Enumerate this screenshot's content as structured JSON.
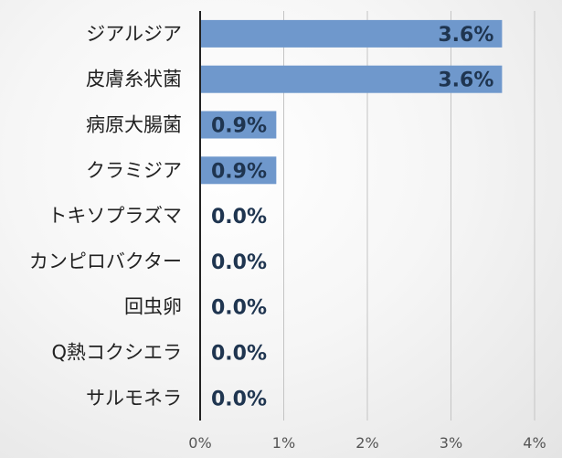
{
  "chart_data": {
    "type": "bar",
    "orientation": "horizontal",
    "categories": [
      "ジアルジア",
      "皮膚糸状菌",
      "病原大腸菌",
      "クラミジア",
      "トキソプラズマ",
      "カンピロバクター",
      "回虫卵",
      "Q熱コクシエラ",
      "サルモネラ"
    ],
    "values": [
      3.6,
      3.6,
      0.9,
      0.9,
      0.0,
      0.0,
      0.0,
      0.0,
      0.0
    ],
    "value_labels": [
      "3.6%",
      "3.6%",
      "0.9%",
      "0.9%",
      "0.0%",
      "0.0%",
      "0.0%",
      "0.0%",
      "0.0%"
    ],
    "x_ticks": [
      "0%",
      "1%",
      "2%",
      "3%",
      "4%"
    ],
    "xlim": [
      0,
      4
    ],
    "grid": "vertical",
    "bar_color": "#6f98cc"
  }
}
